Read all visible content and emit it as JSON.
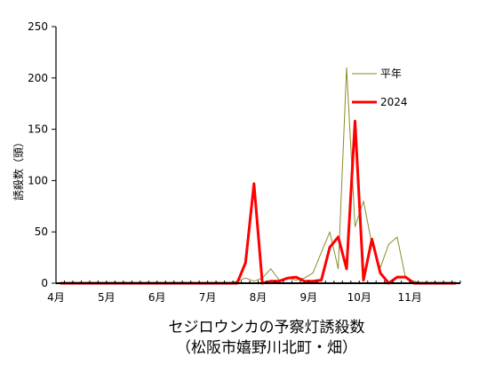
{
  "chart_data": {
    "type": "line",
    "title": "セジロウンカの予察灯誘殺数",
    "subtitle": "（松阪市嬉野川北町・畑）",
    "ylabel": "誘殺数（頭）",
    "xlabel": "",
    "ylim": [
      0,
      250
    ],
    "yticks": [
      "0",
      "50",
      "100",
      "150",
      "200",
      "250"
    ],
    "month_labels": [
      "4月",
      "5月",
      "6月",
      "7月",
      "8月",
      "9月",
      "10月",
      "11月"
    ],
    "legend_position": "right",
    "series": [
      {
        "name": "平年",
        "color": "#8b8b2a",
        "values": [
          0,
          0,
          0,
          0,
          0,
          0,
          0,
          0,
          0,
          0,
          0,
          0,
          0,
          0,
          0,
          0,
          0,
          0,
          0,
          0,
          0,
          2,
          5,
          2,
          5,
          14,
          3,
          5,
          3,
          5,
          10,
          30,
          50,
          14,
          210,
          55,
          80,
          38,
          15,
          38,
          45,
          5,
          2,
          0,
          0,
          0,
          0,
          0
        ]
      },
      {
        "name": "2024",
        "color": "#ff0000",
        "values": [
          0,
          0,
          0,
          0,
          0,
          0,
          0,
          0,
          0,
          0,
          0,
          0,
          0,
          0,
          0,
          0,
          0,
          0,
          0,
          0,
          0,
          0,
          20,
          97,
          0,
          2,
          2,
          5,
          6,
          2,
          2,
          3,
          35,
          45,
          14,
          158,
          3,
          43,
          10,
          0,
          6,
          6,
          0,
          0,
          0,
          0,
          0,
          0
        ]
      }
    ]
  }
}
